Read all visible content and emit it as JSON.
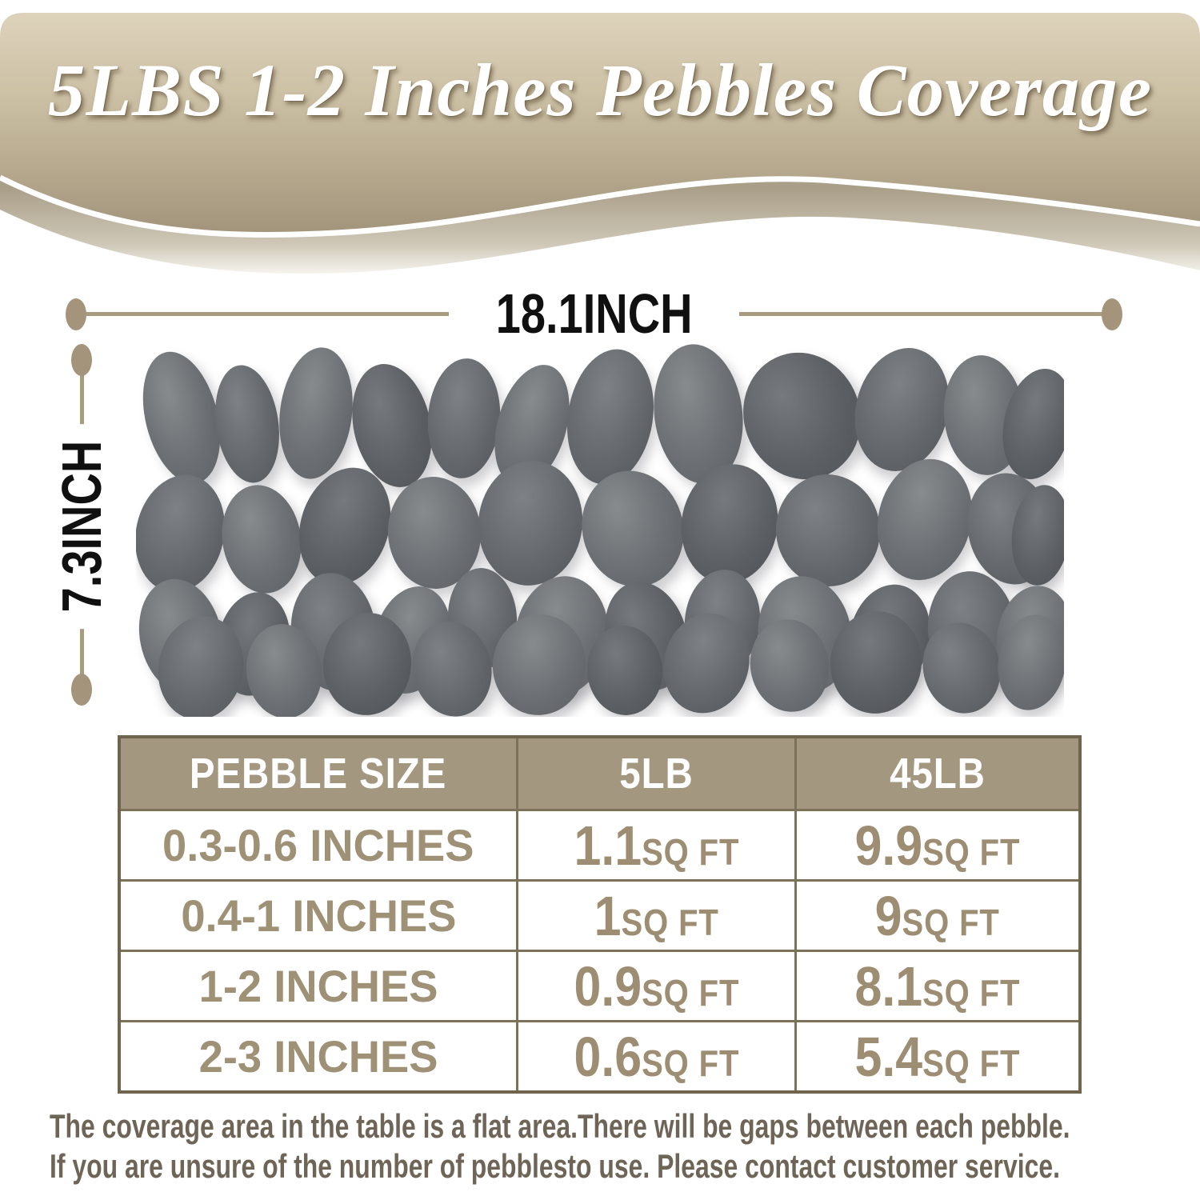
{
  "title": "5LBS 1-2 Inches Pebbles Coverage",
  "dimensions": {
    "width_label": "18.1INCH",
    "height_label": "7.3INCH"
  },
  "table": {
    "headers": [
      "PEBBLE SIZE",
      "5LB",
      "45LB"
    ],
    "rows": [
      {
        "size": "0.3-0.6 INCHES",
        "lb5": "1.1",
        "lb5_unit": "SQ FT",
        "lb45": "9.9",
        "lb45_unit": "SQ FT"
      },
      {
        "size": "0.4-1 INCHES",
        "lb5": "1",
        "lb5_unit": "SQ FT",
        "lb45": "9",
        "lb45_unit": "SQ FT"
      },
      {
        "size": "1-2 INCHES",
        "lb5": "0.9",
        "lb5_unit": "SQ FT",
        "lb45": "8.1",
        "lb45_unit": "SQ FT"
      },
      {
        "size": "2-3 INCHES",
        "lb5": "0.6",
        "lb5_unit": "SQ FT",
        "lb45": "5.4",
        "lb45_unit": "SQ FT"
      }
    ]
  },
  "footer": {
    "line1": "The coverage area in the table is a flat area.There will be gaps between each pebble.",
    "line2": "If you are unsure of the number of pebblesto use. Please contact customer service."
  },
  "colors": {
    "banner_gradient_top": "#d8cdb3",
    "banner_gradient_bottom": "#a2947a",
    "banner_band": "#a99e88",
    "wave_line": "#ffffff",
    "dim_line_tan": "#a89b7e",
    "dim_dot_tan": "#a3947b",
    "dim_text": "#101010",
    "table_outer_border": "#6f654c",
    "table_inner_border": "#7c7259",
    "table_header_bg": "#a39780",
    "table_header_text": "#ffffff",
    "table_cell_text": "#9d8e73",
    "footer_text": "#6e6557"
  },
  "pebbles": {
    "shades": [
      [
        "#878b8e",
        "#6c7074",
        "#5b5f63"
      ],
      [
        "#7e8286",
        "#65696d",
        "#53575b"
      ],
      [
        "#767a7e",
        "#5d6165",
        "#4e5256"
      ]
    ],
    "items": [
      [
        12,
        10,
        90,
        168,
        -14,
        0
      ],
      [
        100,
        28,
        78,
        148,
        -8,
        1
      ],
      [
        180,
        6,
        90,
        165,
        7,
        0
      ],
      [
        272,
        26,
        96,
        156,
        -12,
        2
      ],
      [
        365,
        20,
        90,
        150,
        4,
        1
      ],
      [
        452,
        26,
        86,
        156,
        16,
        0
      ],
      [
        540,
        8,
        106,
        170,
        9,
        1
      ],
      [
        648,
        2,
        110,
        175,
        -7,
        0
      ],
      [
        760,
        12,
        145,
        160,
        -20,
        2
      ],
      [
        900,
        6,
        115,
        156,
        14,
        1
      ],
      [
        1010,
        16,
        100,
        150,
        -5,
        0
      ],
      [
        1085,
        32,
        84,
        140,
        12,
        2
      ],
      [
        0,
        165,
        110,
        148,
        12,
        1
      ],
      [
        108,
        178,
        98,
        136,
        -9,
        0
      ],
      [
        206,
        155,
        110,
        150,
        18,
        2
      ],
      [
        315,
        168,
        116,
        140,
        -4,
        0
      ],
      [
        428,
        148,
        130,
        156,
        6,
        1
      ],
      [
        558,
        160,
        126,
        146,
        -14,
        0
      ],
      [
        682,
        152,
        120,
        150,
        9,
        2
      ],
      [
        800,
        165,
        130,
        140,
        -6,
        1
      ],
      [
        928,
        145,
        116,
        153,
        13,
        0
      ],
      [
        1040,
        163,
        106,
        140,
        -11,
        1
      ],
      [
        1095,
        178,
        72,
        126,
        6,
        2
      ],
      [
        5,
        295,
        102,
        146,
        -12,
        0
      ],
      [
        102,
        312,
        90,
        130,
        9,
        2
      ],
      [
        194,
        288,
        106,
        148,
        -6,
        1
      ],
      [
        298,
        304,
        94,
        136,
        14,
        0
      ],
      [
        390,
        282,
        86,
        126,
        -3,
        1
      ],
      [
        474,
        292,
        116,
        150,
        8,
        0
      ],
      [
        588,
        298,
        100,
        138,
        -16,
        2
      ],
      [
        686,
        284,
        94,
        130,
        5,
        1
      ],
      [
        778,
        292,
        116,
        146,
        -9,
        0
      ],
      [
        892,
        302,
        100,
        134,
        12,
        2
      ],
      [
        990,
        286,
        110,
        148,
        -5,
        1
      ],
      [
        1076,
        304,
        94,
        132,
        8,
        0
      ],
      [
        28,
        342,
        106,
        130,
        10,
        1
      ],
      [
        138,
        352,
        94,
        118,
        -7,
        0
      ],
      [
        234,
        338,
        110,
        128,
        5,
        2
      ],
      [
        346,
        348,
        98,
        120,
        -12,
        1
      ],
      [
        446,
        340,
        116,
        126,
        8,
        0
      ],
      [
        564,
        354,
        94,
        112,
        -4,
        2
      ],
      [
        660,
        338,
        106,
        126,
        15,
        1
      ],
      [
        768,
        346,
        98,
        116,
        -9,
        0
      ],
      [
        868,
        336,
        114,
        128,
        6,
        2
      ],
      [
        984,
        350,
        96,
        114,
        -13,
        1
      ],
      [
        1078,
        340,
        84,
        120,
        9,
        0
      ]
    ]
  }
}
